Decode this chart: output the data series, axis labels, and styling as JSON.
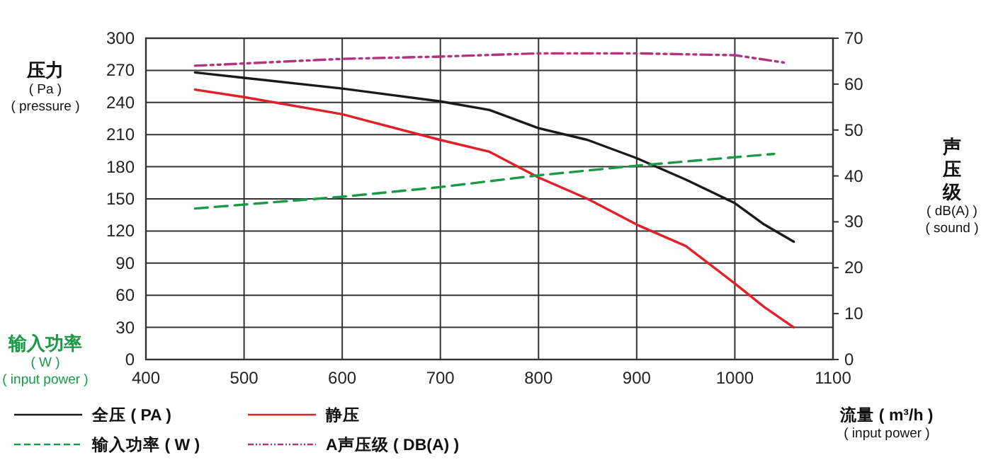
{
  "chart_data": {
    "type": "line",
    "xlabel": "流量 ( m³/h )\n( input power )",
    "ylabel": "压力\n( Pa )\n( pressure )",
    "y2label": "声压级\n( dB(A) )\n( sound )",
    "annotations": [
      "输入功率\n( W )\n( input power )"
    ],
    "xlim": [
      400,
      1100
    ],
    "xticks": [
      400,
      500,
      600,
      700,
      800,
      900,
      1000,
      1100
    ],
    "ylim": [
      0,
      300
    ],
    "yticks": [
      0,
      30,
      60,
      90,
      120,
      150,
      180,
      210,
      240,
      270,
      300
    ],
    "y2lim": [
      0,
      70
    ],
    "y2ticks": [
      0,
      10,
      20,
      30,
      40,
      50,
      60,
      70
    ],
    "grid": true,
    "legend": "bottom",
    "series": [
      {
        "name": "全压 ( PA )",
        "color": "#1a1a1a",
        "line_style": "solid",
        "x": [
          450,
          500,
          600,
          700,
          750,
          800,
          850,
          900,
          950,
          1000,
          1030,
          1060
        ],
        "values": [
          268,
          263,
          253,
          241,
          233,
          216,
          205,
          188,
          168,
          146,
          126,
          110
        ]
      },
      {
        "name": "静压",
        "color": "#e2202a",
        "line_style": "solid",
        "x": [
          450,
          500,
          600,
          700,
          750,
          800,
          850,
          900,
          950,
          1000,
          1030,
          1060
        ],
        "values": [
          252,
          245,
          229,
          205,
          194,
          170,
          150,
          126,
          106,
          71,
          49,
          30
        ]
      },
      {
        "name": "输入功率 ( W )",
        "color": "#1a9a46",
        "line_style": "dashed",
        "x": [
          450,
          600,
          700,
          800,
          900,
          1040
        ],
        "values": [
          141,
          152,
          161,
          172,
          181,
          192
        ]
      },
      {
        "name": "A声压级 ( DB(A) )",
        "color": "#b0347e",
        "line_style": "dashdot",
        "axis": "y2",
        "x": [
          450,
          600,
          700,
          800,
          900,
          1000,
          1050
        ],
        "values": [
          64,
          65.5,
          66,
          66.7,
          66.7,
          66.3,
          64.7
        ]
      }
    ]
  }
}
